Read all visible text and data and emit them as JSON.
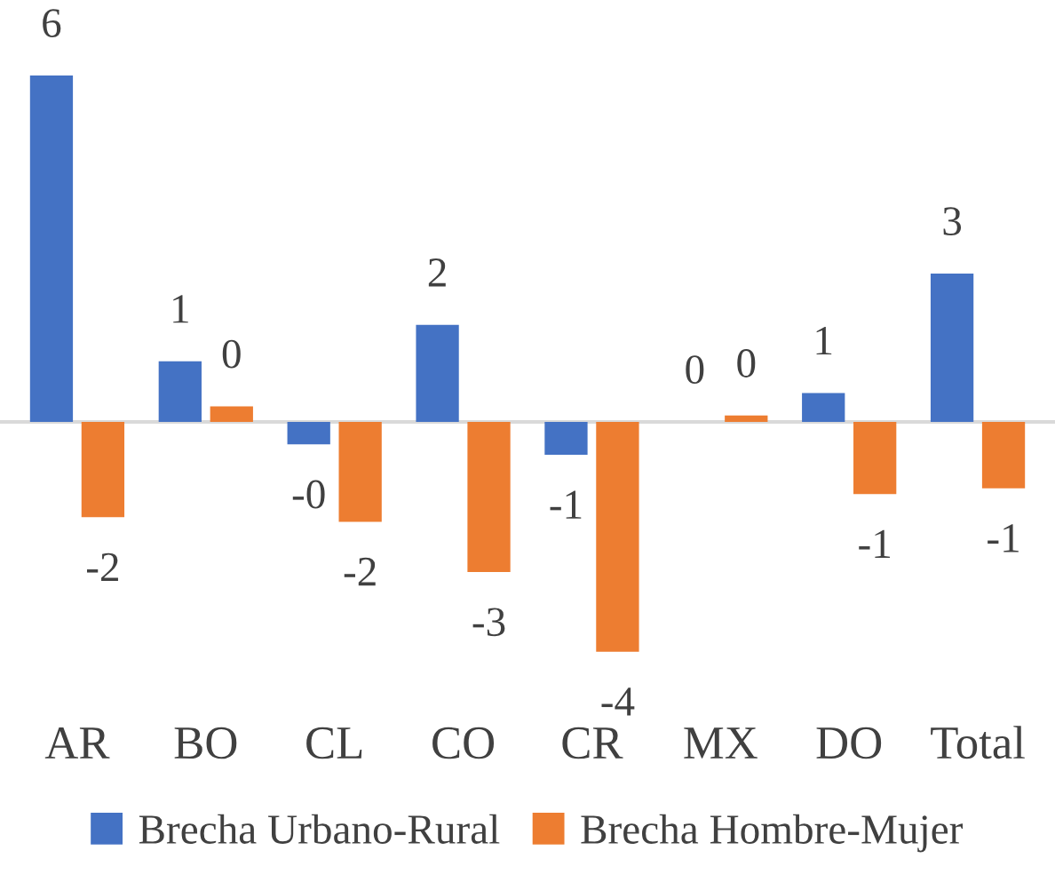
{
  "chart_data": {
    "type": "bar",
    "categories": [
      "AR",
      "BO",
      "CL",
      "CO",
      "CR",
      "MX",
      "DO",
      "Total"
    ],
    "series": [
      {
        "name": "Brecha Urbano-Rural",
        "color": "#4472c4",
        "values": [
          6.0,
          1.05,
          -0.39,
          1.68,
          -0.57,
          0.0,
          0.5,
          2.57
        ],
        "value_labels": [
          "6",
          "1",
          "-0",
          "2",
          "-1",
          "0",
          "1",
          "3"
        ]
      },
      {
        "name": "Brecha Hombre-Mujer",
        "color": "#ed7d31",
        "values": [
          -1.65,
          0.27,
          -1.73,
          -2.6,
          -3.98,
          0.11,
          -1.25,
          -1.15
        ],
        "value_labels": [
          "-2",
          "0",
          "-2",
          "-3",
          "-4",
          "0",
          "-1",
          "-1"
        ]
      }
    ],
    "legend": "bottom"
  }
}
